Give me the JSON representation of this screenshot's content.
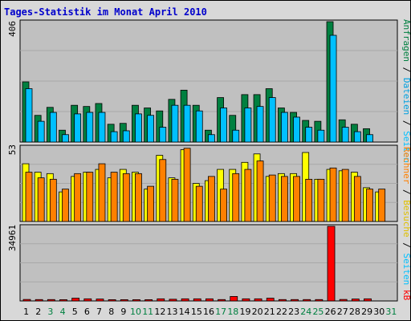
{
  "title": "Tages-Statistik im Monat April 2010",
  "colors": {
    "background": "#d8d8d8",
    "plot": "#c0c0c0",
    "title": "#0000cc",
    "anfragen": "#008040",
    "dateien": "#00c0ff",
    "seiten": "#00c0ff",
    "besuche": "#ffff00",
    "rechner": "#ff8000",
    "kb": "#ff0000",
    "weekend_day": "#008040",
    "weekday": "#000000"
  },
  "chart_data": [
    {
      "type": "bar",
      "panel": "top",
      "y_max_label": "406",
      "ylim": [
        0,
        406
      ],
      "categories": [
        "1",
        "2",
        "3",
        "4",
        "5",
        "6",
        "7",
        "8",
        "9",
        "10",
        "11",
        "12",
        "13",
        "14",
        "15",
        "16",
        "17",
        "18",
        "19",
        "20",
        "21",
        "22",
        "23",
        "24",
        "25",
        "26",
        "27",
        "28",
        "29",
        "30",
        "31"
      ],
      "series": [
        {
          "name": "Anfragen",
          "values": [
            203,
            90,
            117,
            40,
            124,
            120,
            130,
            60,
            63,
            124,
            115,
            105,
            144,
            175,
            124,
            40,
            150,
            90,
            160,
            160,
            180,
            115,
            100,
            73,
            70,
            406,
            75,
            60,
            45,
            0,
            0
          ]
        },
        {
          "name": "Dateien",
          "values": [
            180,
            70,
            100,
            25,
            95,
            100,
            100,
            35,
            38,
            95,
            90,
            50,
            124,
            124,
            105,
            25,
            115,
            40,
            115,
            120,
            150,
            100,
            84,
            50,
            40,
            360,
            50,
            35,
            25,
            0,
            0
          ]
        }
      ],
      "legend_labels": [
        "Anfragen",
        "Dateien",
        "Seiten"
      ],
      "legend_separator": " / "
    },
    {
      "type": "bar",
      "panel": "middle",
      "y_max_label": "53",
      "ylim": [
        0,
        53
      ],
      "categories": [
        "1",
        "2",
        "3",
        "4",
        "5",
        "6",
        "7",
        "8",
        "9",
        "10",
        "11",
        "12",
        "13",
        "14",
        "15",
        "16",
        "17",
        "18",
        "19",
        "20",
        "21",
        "22",
        "23",
        "24",
        "25",
        "26",
        "27",
        "28",
        "29",
        "30",
        "31"
      ],
      "series": [
        {
          "name": "Besuche",
          "values": [
            41,
            35,
            34,
            21,
            32,
            35,
            37,
            31,
            37,
            35,
            23,
            47,
            31,
            51,
            27,
            29,
            37,
            37,
            42,
            48,
            32,
            34,
            34,
            49,
            30,
            37,
            36,
            35,
            24,
            21,
            0
          ]
        },
        {
          "name": "Rechner",
          "values": [
            35,
            31,
            30,
            23,
            34,
            35,
            41,
            35,
            34,
            34,
            25,
            44,
            30,
            52,
            25,
            32,
            23,
            34,
            37,
            43,
            33,
            32,
            32,
            30,
            30,
            38,
            37,
            32,
            23,
            23,
            0
          ]
        }
      ],
      "legend_labels": [
        "Rechner",
        "Besuche",
        "Seiten"
      ],
      "legend_separator": " / "
    },
    {
      "type": "bar",
      "panel": "bottom",
      "y_max_label": "34961",
      "ylim": [
        0,
        34961
      ],
      "categories": [
        "1",
        "2",
        "3",
        "4",
        "5",
        "6",
        "7",
        "8",
        "9",
        "10",
        "11",
        "12",
        "13",
        "14",
        "15",
        "16",
        "17",
        "18",
        "19",
        "20",
        "21",
        "22",
        "23",
        "24",
        "25",
        "26",
        "27",
        "28",
        "29",
        "30",
        "31"
      ],
      "series": [
        {
          "name": "kB",
          "values": [
            700,
            650,
            650,
            600,
            1300,
            1000,
            900,
            600,
            600,
            600,
            600,
            1000,
            800,
            1000,
            1000,
            1000,
            650,
            2100,
            1000,
            1000,
            1300,
            650,
            650,
            650,
            650,
            34961,
            700,
            900,
            1000,
            0,
            0
          ]
        }
      ],
      "legend_labels": [
        "kB"
      ]
    }
  ],
  "day_labels": [
    "1",
    "2",
    "3",
    "4",
    "5",
    "6",
    "7",
    "8",
    "9",
    "10",
    "11",
    "12",
    "13",
    "14",
    "15",
    "16",
    "17",
    "18",
    "19",
    "20",
    "21",
    "22",
    "23",
    "24",
    "25",
    "26",
    "27",
    "28",
    "29",
    "30",
    "31"
  ],
  "weekend_days": [
    "3",
    "4",
    "10",
    "11",
    "17",
    "18",
    "24",
    "25",
    "31"
  ]
}
